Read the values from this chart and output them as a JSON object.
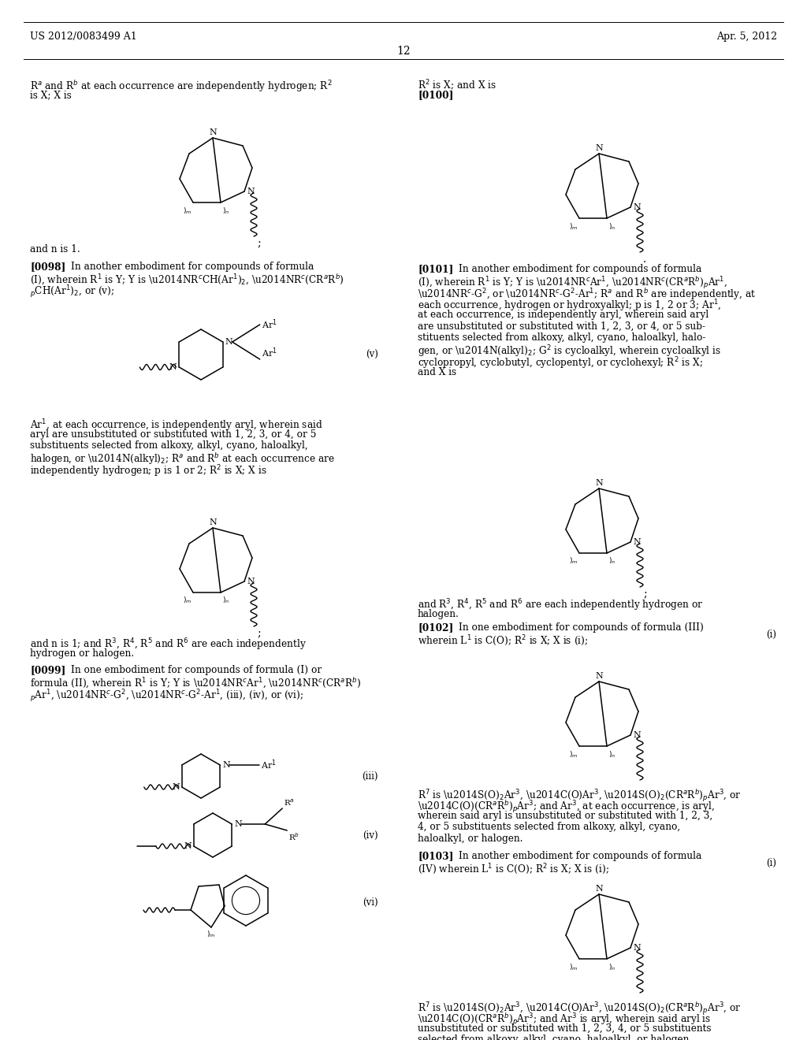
{
  "bg_color": "#ffffff",
  "header_left": "US 2012/0083499 A1",
  "header_right": "Apr. 5, 2012",
  "page_number": "12"
}
